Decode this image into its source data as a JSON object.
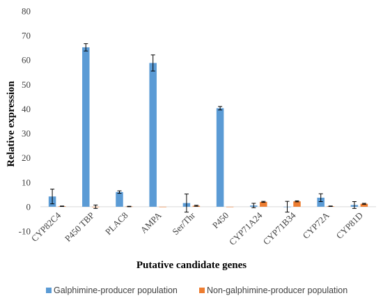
{
  "chart_data": {
    "type": "bar",
    "title": "",
    "xlabel": "Putative candidate genes",
    "ylabel": "Relative expression",
    "ylim": [
      -10,
      80
    ],
    "yticks": [
      -10,
      0,
      10,
      20,
      30,
      40,
      50,
      60,
      70,
      80
    ],
    "grid": false,
    "legend": "bottom",
    "categories": [
      "CYP82C4",
      "P450 TBP",
      "PLAC8",
      "AMPA",
      "Ser/Thr",
      "P450",
      "CYP71A24",
      "CYP71B34",
      "CYP72A",
      "CYP81D"
    ],
    "series": [
      {
        "name": "Galphimine-producer population",
        "color": "#5b9bd5",
        "values": [
          4.2,
          65.2,
          6.0,
          58.8,
          1.5,
          40.3,
          0.5,
          0.0,
          3.7,
          0.7
        ],
        "errors": [
          3.0,
          1.5,
          0.5,
          3.3,
          3.7,
          0.7,
          0.9,
          2.2,
          1.6,
          1.4
        ]
      },
      {
        "name": "Non-galphimine-producer population",
        "color": "#ed7d31",
        "values": [
          0.2,
          0.0,
          0.1,
          0.0,
          0.4,
          0.0,
          2.0,
          2.2,
          0.2,
          1.2
        ],
        "errors": [
          0.1,
          0.7,
          0.1,
          0.0,
          0.2,
          0.0,
          0.2,
          0.2,
          0.1,
          0.2
        ]
      }
    ]
  }
}
